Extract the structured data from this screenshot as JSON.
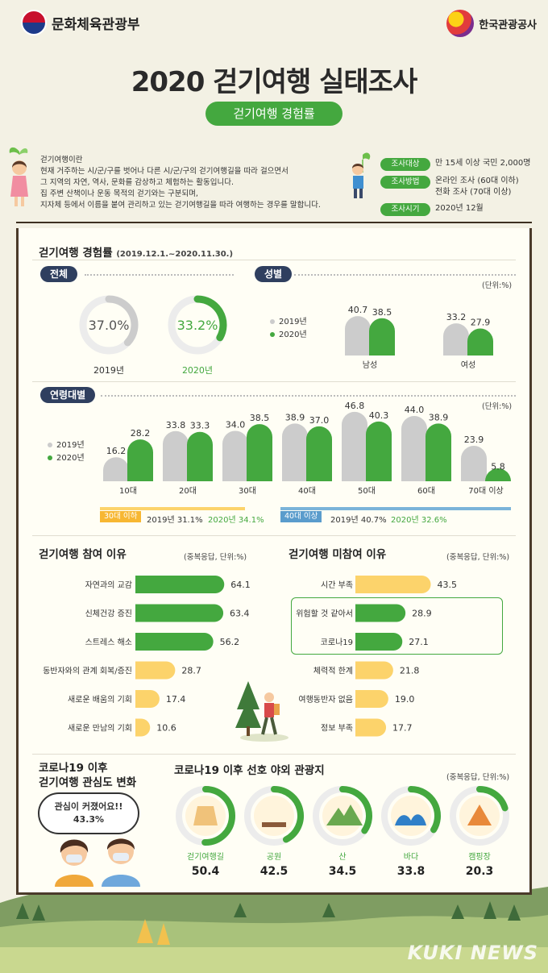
{
  "header": {
    "ministry": "문화체육관광부",
    "kto": "한국관광공사",
    "title": "2020 걷기여행 실태조사",
    "subtitle": "걷기여행 경험률"
  },
  "intro": {
    "lines": [
      "걷기여행이란",
      "현재 거주하는 시/군/구를 벗어나 다른 시/군/구의 걷기여행길을 따라 걸으면서",
      "그 지역의 자연, 역사, 문화를 감상하고 체험하는 활동입니다.",
      "집 주변 산책이나 운동 목적의 걷기와는 구분되며,",
      "지자체 등에서 이름을 붙여 관리하고 있는 걷기여행길을 따라 여행하는 경우를 말합니다."
    ]
  },
  "survey": [
    {
      "key": "조사대상",
      "value": "만 15세 이상 국민 2,000명"
    },
    {
      "key": "조사방법",
      "value": "온라인 조사 (60대 이하)",
      "value2": "전화 조사 (70대 이상)"
    },
    {
      "key": "조사시기",
      "value": "2020년 12월"
    }
  ],
  "sections": {
    "experience_title": "걷기여행 경험률",
    "experience_period": "(2019.12.1.~2020.11.30.)",
    "total_tag": "전체",
    "gender_tag": "성별",
    "age_tag": "연령대별",
    "unit_pct": "(단위:%)",
    "reason_title": "걷기여행 참여 이유",
    "reason_unit": "(중복응답, 단위:%)",
    "nonpart_title": "걷기여행 미참여 이유",
    "nonpart_unit": "(중복응답, 단위:%)",
    "covid_title_1": "코로나19 이후",
    "covid_title_2": "걷기여행 관심도 변화",
    "speech_1": "관심이 커졌어요!!",
    "speech_2": "43.3%",
    "pref_title": "코로나19 이후 선호 야외 관광지",
    "pref_unit": "(중복응답, 단위:%)"
  },
  "ranges": {
    "under30_tag": "30대 이하",
    "under30_2019": "2019년 31.1%",
    "under30_2020": "2020년 34.1%",
    "over40_tag": "40대 이상",
    "over40_2019": "2019년 40.7%",
    "over40_2020": "2020년 32.6%"
  },
  "watermark": "KUKI NEWS",
  "colors": {
    "green": "#44a83f",
    "gray": "#cccccc",
    "yellow": "#fcd36b",
    "blue": "#7bb4d9",
    "orange": "#f7b733",
    "navy": "#2f3f5f"
  },
  "chart_data": [
    {
      "type": "pie",
      "id": "total",
      "categories": [
        "2019년",
        "2020년"
      ],
      "values": [
        37.0,
        33.2
      ],
      "labels": [
        "37.0%",
        "33.2%"
      ]
    },
    {
      "type": "bar",
      "id": "gender",
      "categories": [
        "남성",
        "여성"
      ],
      "series": [
        {
          "name": "2019년",
          "values": [
            40.7,
            33.2
          ]
        },
        {
          "name": "2020년",
          "values": [
            38.5,
            27.9
          ]
        }
      ],
      "ylim": [
        0,
        50
      ]
    },
    {
      "type": "bar",
      "id": "age",
      "categories": [
        "10대",
        "20대",
        "30대",
        "40대",
        "50대",
        "60대",
        "70대 이상"
      ],
      "series": [
        {
          "name": "2019년",
          "values": [
            16.2,
            33.8,
            34.0,
            38.9,
            46.8,
            44.0,
            23.9
          ]
        },
        {
          "name": "2020년",
          "values": [
            28.2,
            33.3,
            38.5,
            37.0,
            40.3,
            38.9,
            5.8
          ]
        }
      ],
      "ylim": [
        0,
        50
      ]
    },
    {
      "type": "bar",
      "id": "reasons",
      "orientation": "horizontal",
      "categories": [
        "자연과의 교감",
        "신체건강 증진",
        "스트레스 해소",
        "동반자와의 관계 회복/증진",
        "새로운 배움의 기회",
        "새로운 만남의 기회"
      ],
      "values": [
        64.1,
        63.4,
        56.2,
        28.7,
        17.4,
        10.6
      ]
    },
    {
      "type": "bar",
      "id": "nonpart",
      "orientation": "horizontal",
      "categories": [
        "시간 부족",
        "위험할 것 같아서",
        "코로나19",
        "체력적 한계",
        "여행동반자 없음",
        "정보 부족"
      ],
      "values": [
        43.5,
        28.9,
        27.1,
        21.8,
        19.0,
        17.7
      ]
    },
    {
      "type": "pie",
      "id": "preferred",
      "categories": [
        "걷기여행길",
        "공원",
        "산",
        "바다",
        "캠핑장"
      ],
      "values": [
        50.4,
        42.5,
        34.5,
        33.8,
        20.3
      ],
      "labels": [
        "50.4",
        "42.5",
        "34.5",
        "33.8",
        "20.3"
      ]
    }
  ]
}
